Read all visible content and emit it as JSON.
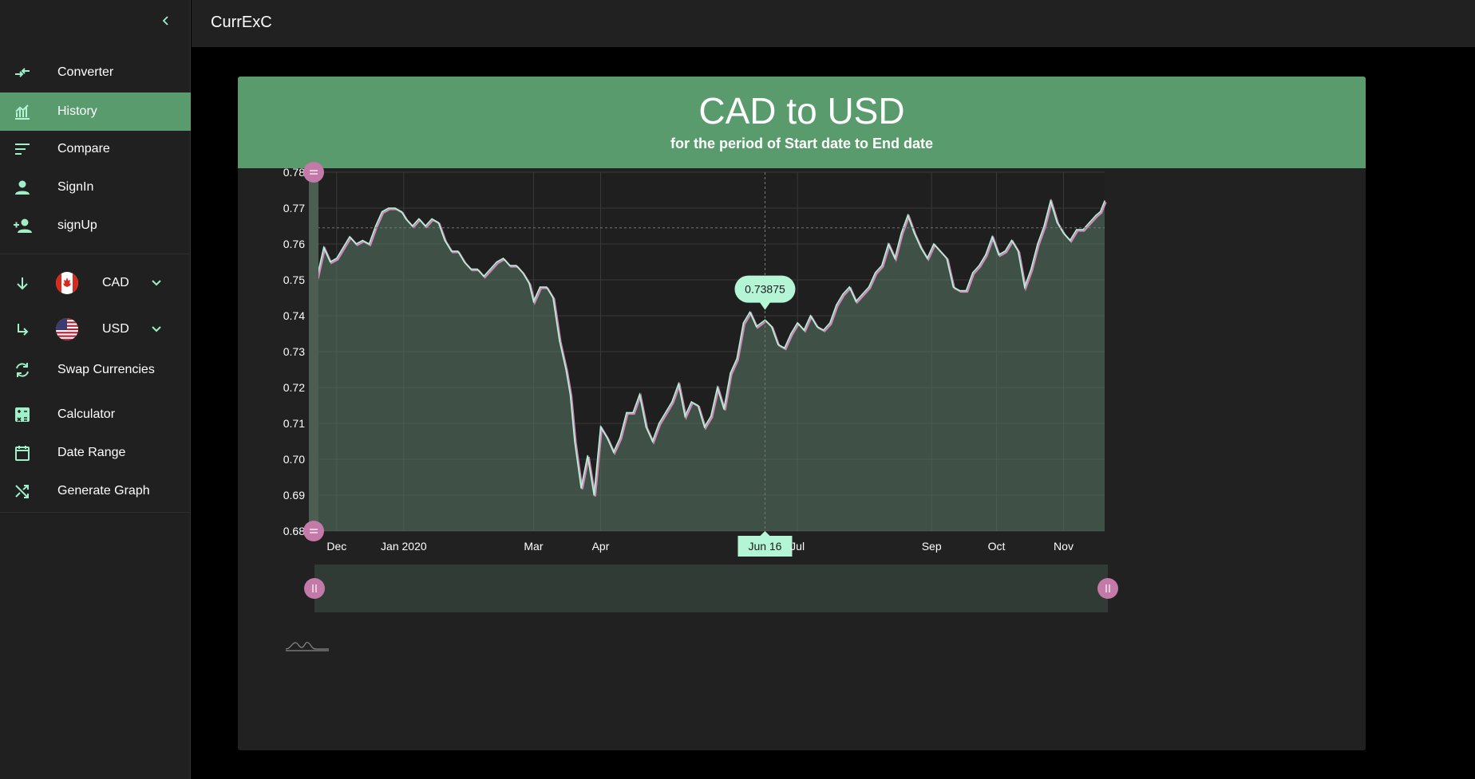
{
  "app": {
    "title": "CurrExC"
  },
  "sidebar": {
    "items": [
      {
        "label": "Converter",
        "icon": "converter-icon"
      },
      {
        "label": "History",
        "icon": "history-chart-icon",
        "active": true
      },
      {
        "label": "Compare",
        "icon": "compare-icon"
      },
      {
        "label": "SignIn",
        "icon": "person-icon"
      },
      {
        "label": "signUp",
        "icon": "person-add-icon"
      }
    ],
    "from_currency": {
      "code": "CAD",
      "flag": "canada-flag-icon"
    },
    "to_currency": {
      "code": "USD",
      "flag": "us-flag-icon"
    },
    "tools": [
      {
        "label": "Swap Currencies",
        "icon": "swap-icon"
      },
      {
        "label": "Calculator",
        "icon": "calculator-icon"
      },
      {
        "label": "Date Range",
        "icon": "calendar-icon"
      },
      {
        "label": "Generate Graph",
        "icon": "shuffle-icon"
      }
    ]
  },
  "card": {
    "title": "CAD to USD",
    "subtitle": "for the period of Start date to End date"
  },
  "colors": {
    "accent_green": "#5a9b6e",
    "mint": "#b4f5d6",
    "pink": "#d18ab9",
    "handle": "#c47aa8"
  },
  "tooltip": {
    "value": "0.73875",
    "date_label": "Jun 16"
  },
  "chart_data": {
    "type": "line",
    "title": "CAD to USD",
    "xlabel": "",
    "ylabel": "",
    "x_range": [
      "2019-11-20",
      "2020-11-20"
    ],
    "ylim": [
      0.68,
      0.78
    ],
    "y_ticks": [
      "0.78",
      "0.77",
      "0.76",
      "0.75",
      "0.74",
      "0.73",
      "0.72",
      "0.71",
      "0.70",
      "0.69",
      "0.68"
    ],
    "x_ticks": [
      {
        "label": "Dec",
        "date": "2019-12-01"
      },
      {
        "label": "Jan 2020",
        "date": "2020-01-01"
      },
      {
        "label": "Mar",
        "date": "2020-03-01"
      },
      {
        "label": "Apr",
        "date": "2020-04-01"
      },
      {
        "label": "Jun 16",
        "date": "2020-06-16"
      },
      {
        "label": "Jul",
        "date": "2020-07-01"
      },
      {
        "label": "Sep",
        "date": "2020-09-01"
      },
      {
        "label": "Oct",
        "date": "2020-10-01"
      },
      {
        "label": "Nov",
        "date": "2020-11-01"
      }
    ],
    "crosshair": {
      "date": "2020-06-16",
      "value": 0.73875
    },
    "series": [
      {
        "x": [
          "2019-11-20",
          "2019-11-22",
          "2019-11-25",
          "2019-11-28",
          "2019-12-01",
          "2019-12-04",
          "2019-12-07",
          "2019-12-10",
          "2019-12-13",
          "2019-12-16",
          "2019-12-19",
          "2019-12-22",
          "2019-12-25",
          "2019-12-28",
          "2019-12-31",
          "2020-01-02",
          "2020-01-05",
          "2020-01-08",
          "2020-01-11",
          "2020-01-14",
          "2020-01-17",
          "2020-01-20",
          "2020-01-23",
          "2020-01-26",
          "2020-01-29",
          "2020-02-01",
          "2020-02-04",
          "2020-02-07",
          "2020-02-10",
          "2020-02-13",
          "2020-02-16",
          "2020-02-19",
          "2020-02-22",
          "2020-02-25",
          "2020-02-28",
          "2020-03-01",
          "2020-03-04",
          "2020-03-07",
          "2020-03-10",
          "2020-03-13",
          "2020-03-16",
          "2020-03-18",
          "2020-03-20",
          "2020-03-23",
          "2020-03-26",
          "2020-03-29",
          "2020-04-01",
          "2020-04-04",
          "2020-04-07",
          "2020-04-10",
          "2020-04-13",
          "2020-04-16",
          "2020-04-19",
          "2020-04-22",
          "2020-04-25",
          "2020-04-28",
          "2020-05-01",
          "2020-05-04",
          "2020-05-07",
          "2020-05-10",
          "2020-05-13",
          "2020-05-16",
          "2020-05-19",
          "2020-05-22",
          "2020-05-25",
          "2020-05-28",
          "2020-05-31",
          "2020-06-03",
          "2020-06-06",
          "2020-06-09",
          "2020-06-12",
          "2020-06-16",
          "2020-06-19",
          "2020-06-22",
          "2020-06-25",
          "2020-06-28",
          "2020-07-01",
          "2020-07-04",
          "2020-07-07",
          "2020-07-10",
          "2020-07-13",
          "2020-07-16",
          "2020-07-19",
          "2020-07-22",
          "2020-07-25",
          "2020-07-28",
          "2020-07-31",
          "2020-08-03",
          "2020-08-06",
          "2020-08-09",
          "2020-08-12",
          "2020-08-15",
          "2020-08-18",
          "2020-08-21",
          "2020-08-24",
          "2020-08-27",
          "2020-08-30",
          "2020-09-02",
          "2020-09-05",
          "2020-09-08",
          "2020-09-11",
          "2020-09-14",
          "2020-09-17",
          "2020-09-20",
          "2020-09-23",
          "2020-09-26",
          "2020-09-29",
          "2020-10-02",
          "2020-10-05",
          "2020-10-08",
          "2020-10-11",
          "2020-10-14",
          "2020-10-17",
          "2020-10-20",
          "2020-10-23",
          "2020-10-26",
          "2020-10-29",
          "2020-11-01",
          "2020-11-04",
          "2020-11-07",
          "2020-11-10",
          "2020-11-13",
          "2020-11-16",
          "2020-11-18",
          "2020-11-20"
        ],
        "values": [
          0.752,
          0.751,
          0.759,
          0.755,
          0.756,
          0.759,
          0.762,
          0.76,
          0.761,
          0.76,
          0.765,
          0.769,
          0.77,
          0.77,
          0.769,
          0.767,
          0.765,
          0.767,
          0.765,
          0.767,
          0.766,
          0.761,
          0.758,
          0.758,
          0.755,
          0.753,
          0.753,
          0.751,
          0.753,
          0.755,
          0.756,
          0.754,
          0.754,
          0.752,
          0.749,
          0.744,
          0.748,
          0.748,
          0.745,
          0.733,
          0.725,
          0.718,
          0.705,
          0.692,
          0.701,
          0.69,
          0.709,
          0.706,
          0.702,
          0.706,
          0.713,
          0.713,
          0.718,
          0.709,
          0.705,
          0.71,
          0.713,
          0.716,
          0.721,
          0.712,
          0.716,
          0.715,
          0.709,
          0.712,
          0.72,
          0.714,
          0.724,
          0.728,
          0.738,
          0.741,
          0.737,
          0.7388,
          0.737,
          0.732,
          0.731,
          0.735,
          0.738,
          0.736,
          0.74,
          0.737,
          0.736,
          0.738,
          0.743,
          0.746,
          0.748,
          0.744,
          0.746,
          0.748,
          0.752,
          0.754,
          0.76,
          0.756,
          0.763,
          0.768,
          0.763,
          0.759,
          0.756,
          0.76,
          0.758,
          0.756,
          0.748,
          0.747,
          0.747,
          0.752,
          0.754,
          0.757,
          0.762,
          0.757,
          0.758,
          0.761,
          0.758,
          0.748,
          0.753,
          0.76,
          0.765,
          0.772,
          0.766,
          0.763,
          0.761,
          0.764,
          0.764,
          0.766,
          0.768,
          0.769,
          0.772
        ]
      }
    ],
    "grid": true,
    "area_fill": true,
    "range_selector": true
  }
}
